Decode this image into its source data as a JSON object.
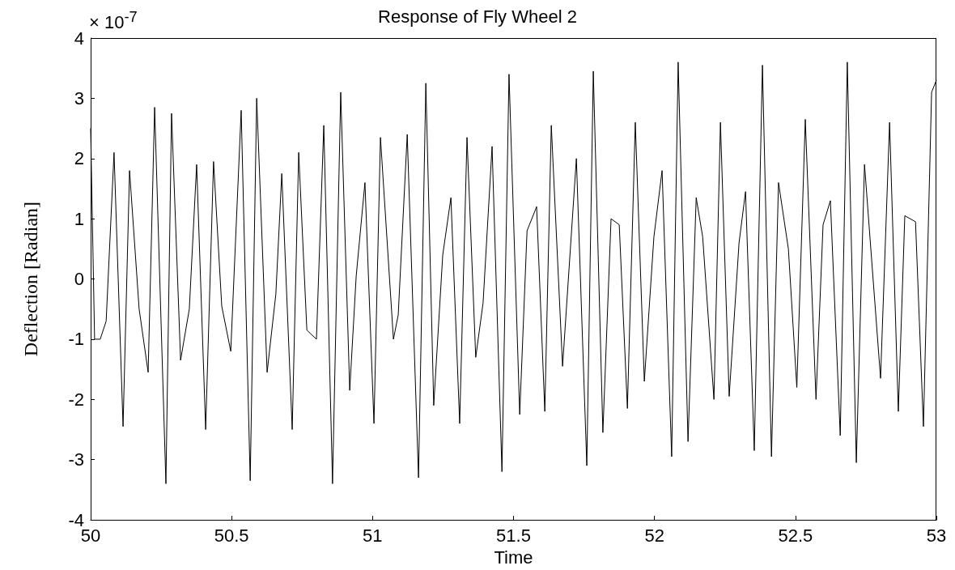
{
  "chart_data": {
    "type": "line",
    "title": "Response of Fly Wheel 2",
    "xlabel": "Time",
    "ylabel": "Deflection [Radian]",
    "annotations": [
      "× 10$^{-7}$"
    ],
    "x": [
      50.0,
      50.014,
      50.034,
      50.055,
      50.083,
      50.115,
      50.138,
      50.172,
      50.204,
      50.227,
      50.267,
      50.287,
      50.319,
      50.35,
      50.376,
      50.408,
      50.436,
      50.465,
      50.497,
      50.534,
      50.566,
      50.589,
      50.626,
      50.657,
      50.678,
      50.715,
      50.738,
      50.767,
      50.801,
      50.827,
      50.858,
      50.887,
      50.919,
      50.942,
      50.973,
      51.005,
      51.028,
      51.074,
      51.091,
      51.123,
      51.163,
      51.189,
      51.217,
      51.249,
      51.278,
      51.309,
      51.335,
      51.366,
      51.392,
      51.424,
      51.459,
      51.484,
      51.522,
      51.548,
      51.582,
      51.611,
      51.634,
      51.674,
      51.723,
      51.76,
      51.783,
      51.817,
      51.846,
      51.875,
      51.904,
      51.932,
      51.964,
      51.998,
      52.027,
      52.061,
      52.084,
      52.119,
      52.148,
      52.171,
      52.211,
      52.234,
      52.265,
      52.3,
      52.323,
      52.354,
      52.383,
      52.415,
      52.44,
      52.475,
      52.505,
      52.535,
      52.573,
      52.598,
      52.624,
      52.659,
      52.684,
      52.716,
      52.745,
      52.802,
      52.834,
      52.865,
      52.888,
      52.926,
      52.954,
      52.983,
      53.0
    ],
    "series": [
      {
        "color": "#000000",
        "values": [
          2.5,
          -1.0,
          -1.0,
          -0.7,
          2.1,
          -2.45,
          1.8,
          -0.5,
          -1.55,
          2.85,
          -3.4,
          2.75,
          -1.35,
          -0.5,
          1.9,
          -2.5,
          1.95,
          -0.45,
          -1.2,
          2.8,
          -3.35,
          3.0,
          -1.55,
          -0.25,
          1.75,
          -2.5,
          2.1,
          -0.85,
          -1.0,
          2.55,
          -3.4,
          3.1,
          -1.85,
          0.05,
          1.6,
          -2.4,
          2.35,
          -1.0,
          -0.6,
          2.4,
          -3.3,
          3.25,
          -2.1,
          0.4,
          1.35,
          -2.4,
          2.35,
          -1.3,
          -0.4,
          2.2,
          -3.2,
          3.4,
          -2.25,
          0.8,
          1.2,
          -2.2,
          2.55,
          -1.45,
          2.0,
          -3.1,
          3.45,
          -2.55,
          1.0,
          0.9,
          -2.15,
          2.6,
          -1.7,
          0.7,
          1.8,
          -2.95,
          3.6,
          -2.7,
          1.35,
          0.7,
          -2.0,
          2.6,
          -1.95,
          0.6,
          1.45,
          -2.85,
          3.55,
          -2.95,
          1.6,
          0.5,
          -1.8,
          2.65,
          -2.0,
          0.9,
          1.3,
          -2.6,
          3.6,
          -3.05,
          1.9,
          -1.65,
          2.6,
          -2.2,
          1.05,
          0.95,
          -2.45,
          3.1,
          3.3
        ]
      }
    ],
    "xlim": [
      50,
      53
    ],
    "xticks": [
      50,
      50.5,
      51,
      51.5,
      52,
      52.5,
      53
    ],
    "ylim": [
      -4,
      4
    ],
    "yticks": [
      -4,
      -3,
      -2,
      -1,
      0,
      1,
      2,
      3,
      4
    ],
    "grid": false,
    "marker": "none",
    "line_style": "solid"
  }
}
